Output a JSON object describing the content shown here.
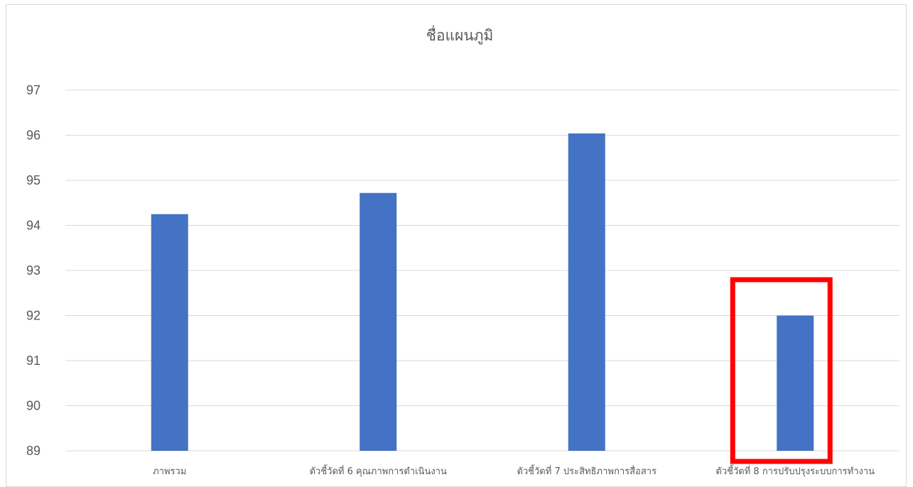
{
  "chart_data": {
    "type": "bar",
    "title": "ชื่อแผนภูมิ",
    "categories": [
      "ภาพรวม",
      "ตัวชี้วัดที่ 6 คุณภาพการดำเนินงาน",
      "ตัวชี้วัดที่ 7 ประสิทธิภาพการสื่อสาร",
      "ตัวชี้วัดที่ 8 การปรับปรุงระบบการทำงาน"
    ],
    "values": [
      94.25,
      94.72,
      96.04,
      92.0
    ],
    "ylim": [
      89,
      97
    ],
    "yticks": [
      89,
      90,
      91,
      92,
      93,
      94,
      95,
      96,
      97
    ],
    "grid": true,
    "legend": "none",
    "bar_color": "#4472C4",
    "highlight": {
      "category": "ตัวชี้วัดที่ 8 การปรับปรุงระบบการทำงาน",
      "color": "#FF0000"
    }
  }
}
